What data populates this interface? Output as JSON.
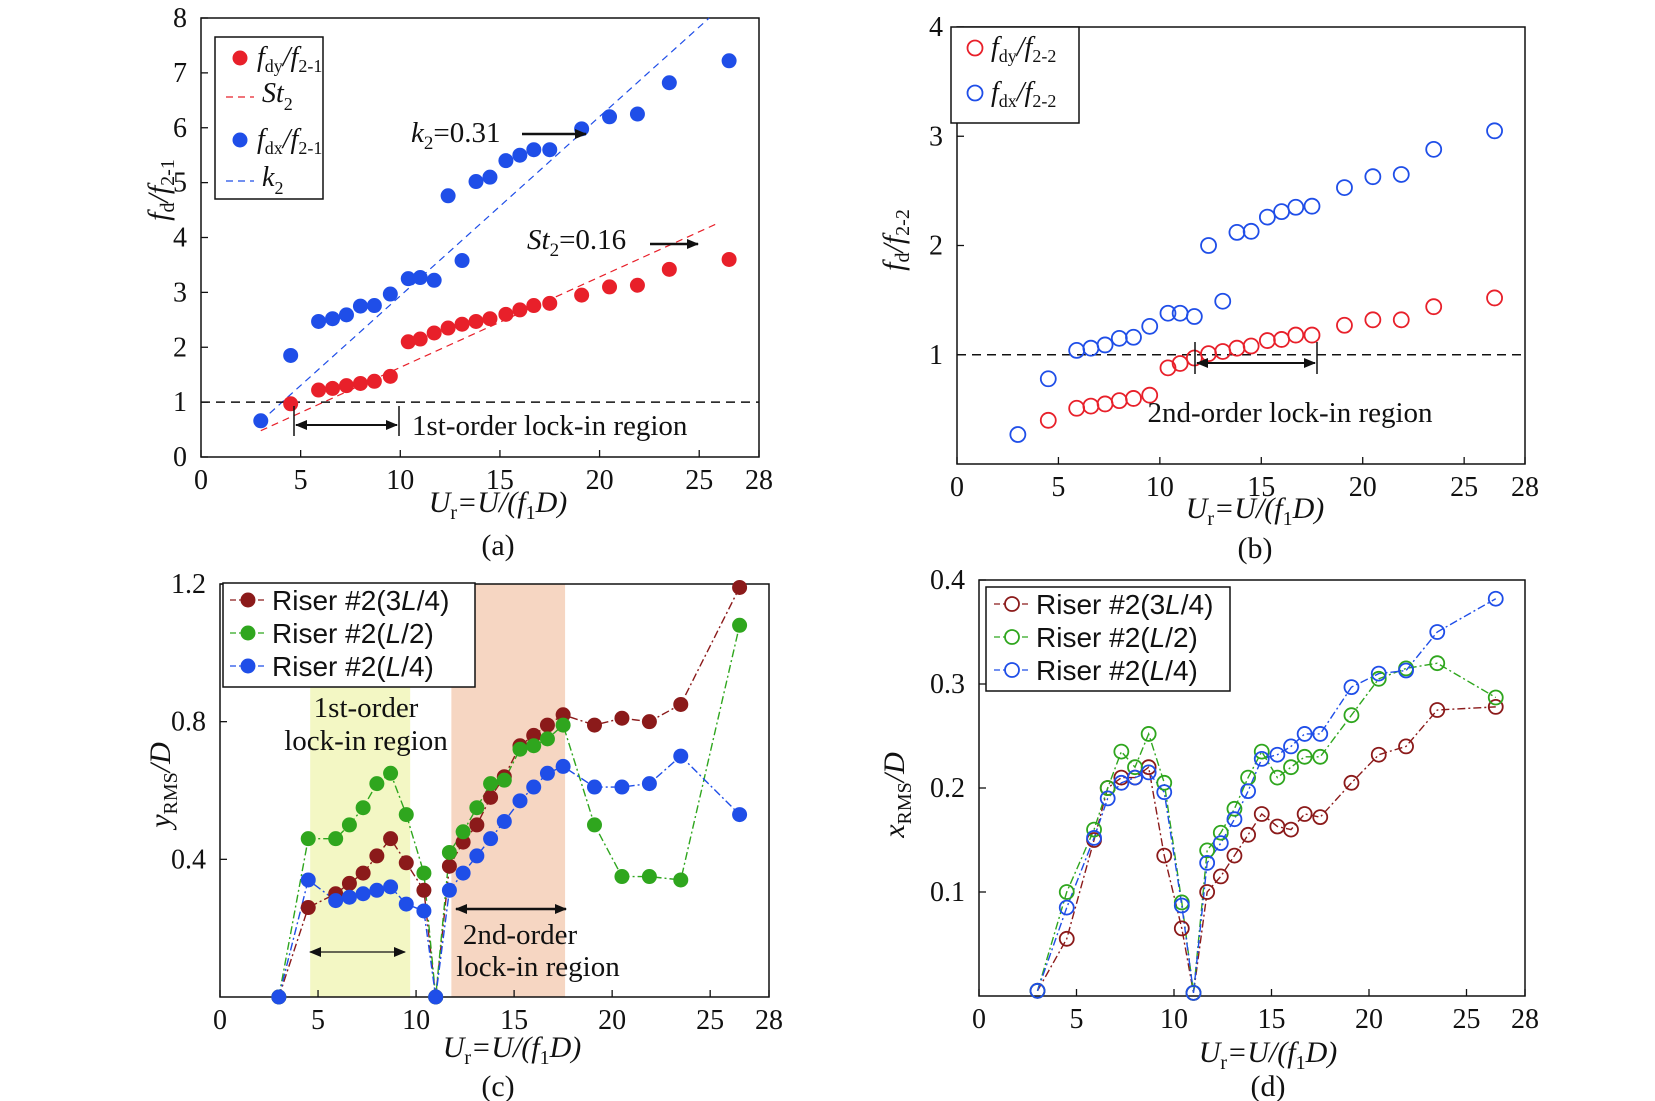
{
  "chart_data": [
    {
      "panel": "(a)",
      "type": "scatter",
      "xlabel": "U_r=U/(f_1D)",
      "ylabel": "f_d/f_2-1",
      "xlim": [
        0,
        28
      ],
      "ylim": [
        0,
        8
      ],
      "xticks": [
        "0",
        "5",
        "10",
        "15",
        "20",
        "25",
        "28"
      ],
      "yticks": [
        "0",
        "1",
        "2",
        "3",
        "4",
        "5",
        "6",
        "7",
        "8"
      ],
      "series": [
        {
          "name": "f_dy/f_2-1",
          "color": "#e8202a",
          "marker": "filled",
          "x": [
            4.5,
            5.9,
            6.6,
            7.3,
            8.0,
            8.7,
            9.5,
            10.4,
            11.0,
            11.7,
            12.4,
            13.1,
            13.8,
            14.5,
            15.3,
            16.0,
            16.7,
            17.5,
            19.1,
            20.5,
            21.9,
            23.5,
            26.5
          ],
          "y": [
            0.97,
            1.22,
            1.25,
            1.3,
            1.34,
            1.38,
            1.47,
            2.1,
            2.15,
            2.26,
            2.35,
            2.42,
            2.47,
            2.52,
            2.6,
            2.68,
            2.76,
            2.8,
            2.95,
            3.1,
            3.13,
            3.42,
            3.6
          ]
        },
        {
          "name": "f_dx/f_2-1",
          "color": "#1f4ee8",
          "marker": "filled",
          "x": [
            3.0,
            4.5,
            5.9,
            6.6,
            7.3,
            8.0,
            8.7,
            9.5,
            10.4,
            11.0,
            11.7,
            12.4,
            13.1,
            13.8,
            14.5,
            15.3,
            16.0,
            16.7,
            17.5,
            19.1,
            20.5,
            21.9,
            23.5,
            26.5
          ],
          "y": [
            0.66,
            1.85,
            2.47,
            2.52,
            2.59,
            2.75,
            2.76,
            2.97,
            3.25,
            3.27,
            3.22,
            4.76,
            3.58,
            5.02,
            5.1,
            5.4,
            5.5,
            5.6,
            5.6,
            5.98,
            6.2,
            6.25,
            6.82,
            7.22
          ]
        },
        {
          "name": "St_2",
          "color": "#e8202a",
          "style": "dashed",
          "x": [
            3.0,
            26.0
          ],
          "y": [
            0.48,
            4.27
          ]
        },
        {
          "name": "k_2",
          "color": "#1f4ee8",
          "style": "dashed",
          "x": [
            3.0,
            25.5
          ],
          "y": [
            0.65,
            8.0
          ]
        },
        {
          "name": "reference",
          "color": "#111111",
          "style": "dashed",
          "x": [
            0,
            28
          ],
          "y": [
            1.0,
            1.0
          ]
        }
      ],
      "annotations": [
        "k_2=0.31",
        "St_2=0.16",
        "1st-order lock-in region"
      ],
      "legend_position": "top-left"
    },
    {
      "panel": "(b)",
      "type": "scatter",
      "xlabel": "U_r=U/(f_1D)",
      "ylabel": "f_d/f_2-2",
      "xlim": [
        0,
        28
      ],
      "ylim": [
        0,
        4
      ],
      "xticks": [
        "0",
        "5",
        "10",
        "15",
        "20",
        "25",
        "28"
      ],
      "yticks": [
        "1",
        "2",
        "3",
        "4"
      ],
      "series": [
        {
          "name": "f_dy/f_2-2",
          "color": "#e8202a",
          "marker": "open",
          "x": [
            4.5,
            5.9,
            6.6,
            7.3,
            8.0,
            8.7,
            9.5,
            10.4,
            11.0,
            11.7,
            12.4,
            13.1,
            13.8,
            14.5,
            15.3,
            16.0,
            16.7,
            17.5,
            19.1,
            20.5,
            21.9,
            23.5,
            26.5
          ],
          "y": [
            0.4,
            0.51,
            0.53,
            0.55,
            0.58,
            0.6,
            0.63,
            0.88,
            0.92,
            0.97,
            1.01,
            1.03,
            1.06,
            1.08,
            1.13,
            1.14,
            1.18,
            1.18,
            1.27,
            1.32,
            1.32,
            1.44,
            1.52
          ]
        },
        {
          "name": "f_dx/f_2-2",
          "color": "#1f4ee8",
          "marker": "open",
          "x": [
            3.0,
            4.5,
            5.9,
            6.6,
            7.3,
            8.0,
            8.7,
            9.5,
            10.4,
            11.0,
            11.7,
            12.4,
            13.1,
            13.8,
            14.5,
            15.3,
            16.0,
            16.7,
            17.5,
            19.1,
            20.5,
            21.9,
            23.5,
            26.5
          ],
          "y": [
            0.27,
            0.78,
            1.04,
            1.06,
            1.09,
            1.15,
            1.16,
            1.26,
            1.38,
            1.38,
            1.35,
            2.0,
            1.49,
            2.12,
            2.13,
            2.26,
            2.31,
            2.35,
            2.36,
            2.53,
            2.63,
            2.65,
            2.88,
            3.05
          ]
        },
        {
          "name": "reference",
          "color": "#111111",
          "style": "dashed",
          "x": [
            0,
            28
          ],
          "y": [
            1.0,
            1.0
          ]
        }
      ],
      "annotations": [
        "2nd-order lock-in region"
      ],
      "legend_position": "top-left"
    },
    {
      "panel": "(c)",
      "type": "line",
      "xlabel": "U_r=U/(f_1D)",
      "ylabel": "y_RMS/D",
      "xlim": [
        0,
        28
      ],
      "ylim": [
        0,
        1.2
      ],
      "xticks": [
        "0",
        "5",
        "10",
        "15",
        "20",
        "25",
        "28"
      ],
      "yticks": [
        "0.4",
        "0.8",
        "1.2"
      ],
      "x": [
        3.0,
        4.5,
        5.9,
        6.6,
        7.3,
        8.0,
        8.7,
        9.5,
        10.4,
        11.0,
        11.7,
        12.4,
        13.1,
        13.8,
        14.5,
        15.3,
        16.0,
        16.7,
        17.5,
        19.1,
        20.5,
        21.9,
        23.5,
        26.5
      ],
      "series": [
        {
          "name": "Riser #2(3L/4)",
          "color": "#8b1a1a",
          "y": [
            0.0,
            0.26,
            0.3,
            0.33,
            0.36,
            0.41,
            0.46,
            0.39,
            0.31,
            0.0,
            0.38,
            0.45,
            0.5,
            0.58,
            0.64,
            0.73,
            0.76,
            0.79,
            0.82,
            0.79,
            0.81,
            0.8,
            0.85,
            1.19
          ]
        },
        {
          "name": "Riser #2(L/2)",
          "color": "#2fa61e",
          "y": [
            0.0,
            0.46,
            0.46,
            0.5,
            0.55,
            0.62,
            0.65,
            0.53,
            0.36,
            0.0,
            0.42,
            0.48,
            0.55,
            0.62,
            0.63,
            0.72,
            0.73,
            0.75,
            0.79,
            0.5,
            0.35,
            0.35,
            0.34,
            1.08
          ]
        },
        {
          "name": "Riser #2(L/4)",
          "color": "#1f4ee8",
          "y": [
            0.0,
            0.34,
            0.28,
            0.29,
            0.3,
            0.31,
            0.32,
            0.27,
            0.25,
            0.0,
            0.31,
            0.36,
            0.41,
            0.46,
            0.51,
            0.57,
            0.61,
            0.65,
            0.67,
            0.61,
            0.61,
            0.62,
            0.7,
            0.53
          ]
        }
      ],
      "shaded_regions": [
        {
          "x": [
            4.6,
            9.7
          ],
          "color": "#f3f7c4",
          "label": "1st-order lock-in region"
        },
        {
          "x": [
            11.8,
            17.6
          ],
          "color": "#f6d6c2",
          "label": "2nd-order lock-in region"
        }
      ],
      "legend_position": "top-left"
    },
    {
      "panel": "(d)",
      "type": "line",
      "xlabel": "U_r=U/(f_1D)",
      "ylabel": "x_RMS/D",
      "xlim": [
        0,
        28
      ],
      "ylim": [
        0,
        0.4
      ],
      "xticks": [
        "0",
        "5",
        "10",
        "15",
        "20",
        "25",
        "28"
      ],
      "yticks": [
        "0.1",
        "0.2",
        "0.3",
        "0.4"
      ],
      "x": [
        3.0,
        4.5,
        5.9,
        6.6,
        7.3,
        8.0,
        8.7,
        9.5,
        10.4,
        11.0,
        11.7,
        12.4,
        13.1,
        13.8,
        14.5,
        15.3,
        16.0,
        16.7,
        17.5,
        19.1,
        20.5,
        21.9,
        23.5,
        26.5
      ],
      "series": [
        {
          "name": "Riser #2(3L/4)",
          "color": "#8b1a1a",
          "marker": "open",
          "y": [
            0.005,
            0.055,
            0.15,
            0.2,
            0.21,
            0.21,
            0.22,
            0.135,
            0.065,
            0.003,
            0.1,
            0.115,
            0.135,
            0.155,
            0.175,
            0.163,
            0.16,
            0.175,
            0.172,
            0.205,
            0.232,
            0.24,
            0.275,
            0.278
          ]
        },
        {
          "name": "Riser #2(L/2)",
          "color": "#2fa61e",
          "marker": "open",
          "y": [
            0.005,
            0.1,
            0.16,
            0.2,
            0.235,
            0.22,
            0.252,
            0.205,
            0.09,
            0.003,
            0.14,
            0.157,
            0.18,
            0.21,
            0.235,
            0.21,
            0.22,
            0.23,
            0.23,
            0.27,
            0.305,
            0.315,
            0.32,
            0.287
          ]
        },
        {
          "name": "Riser #2(L/4)",
          "color": "#1f4ee8",
          "marker": "open",
          "y": [
            0.005,
            0.085,
            0.152,
            0.19,
            0.205,
            0.21,
            0.215,
            0.196,
            0.087,
            0.003,
            0.128,
            0.147,
            0.17,
            0.197,
            0.228,
            0.232,
            0.24,
            0.252,
            0.252,
            0.297,
            0.31,
            0.313,
            0.35,
            0.382
          ]
        }
      ],
      "legend_position": "top-left"
    }
  ],
  "text": {
    "xlabel": {
      "U": "U",
      "r": "r",
      "eq": "=U/(f",
      "one": "1",
      "D": "D)"
    },
    "a": {
      "sub": "(a)",
      "ylab_f": "f",
      "ylab_d": "d",
      "ylab_slash": "/f",
      "ylab_sub": "2-1",
      "leg1_f": "f",
      "leg1_s": "dy",
      "leg1_r": "/f",
      "leg1_s2": "2-1",
      "leg2_St": "St",
      "leg2_s": "2",
      "leg3_f": "f",
      "leg3_s": "dx",
      "leg3_r": "/f",
      "leg3_s2": "2-1",
      "leg4_k": "k",
      "leg4_s": "2",
      "ann_k": "k",
      "ann_k_sub": "2",
      "ann_k_val": "=0.31",
      "ann_St": "St",
      "ann_St_sub": "2",
      "ann_St_val": "=0.16",
      "region": "1st-order lock-in region"
    },
    "b": {
      "sub": "(b)",
      "ylab_f": "f",
      "ylab_d": "d",
      "ylab_slash": "/f",
      "ylab_sub": "2-2",
      "leg1_f": "f",
      "leg1_s": "dy",
      "leg1_r": "/f",
      "leg1_s2": "2-2",
      "leg2_f": "f",
      "leg2_s": "dx",
      "leg2_r": "/f",
      "leg2_s2": "2-2",
      "region": "2nd-order lock-in region"
    },
    "c": {
      "sub": "(c)",
      "ylab_y": "y",
      "ylab_sub": "RMS",
      "ylab_rest": "/D",
      "leg": [
        {
          "pre": "Riser #2(3",
          "L": "L",
          "post": "/4)"
        },
        {
          "pre": "Riser #2(",
          "L": "L",
          "post": "/2)"
        },
        {
          "pre": "Riser #2(",
          "L": "L",
          "post": "/4)"
        }
      ],
      "region1_l1": "1st-order",
      "region1_l2": "lock-in region",
      "region2_l1": "2nd-order",
      "region2_l2": "lock-in region"
    },
    "d": {
      "sub": "(d)",
      "ylab_x": "x",
      "ylab_sub": "RMS",
      "ylab_rest": "/D",
      "leg": [
        {
          "pre": "Riser #2(3",
          "L": "L",
          "post": "/4)"
        },
        {
          "pre": "Riser #2(",
          "L": "L",
          "post": "/2)"
        },
        {
          "pre": "Riser #2(",
          "L": "L",
          "post": "/4)"
        }
      ]
    }
  }
}
